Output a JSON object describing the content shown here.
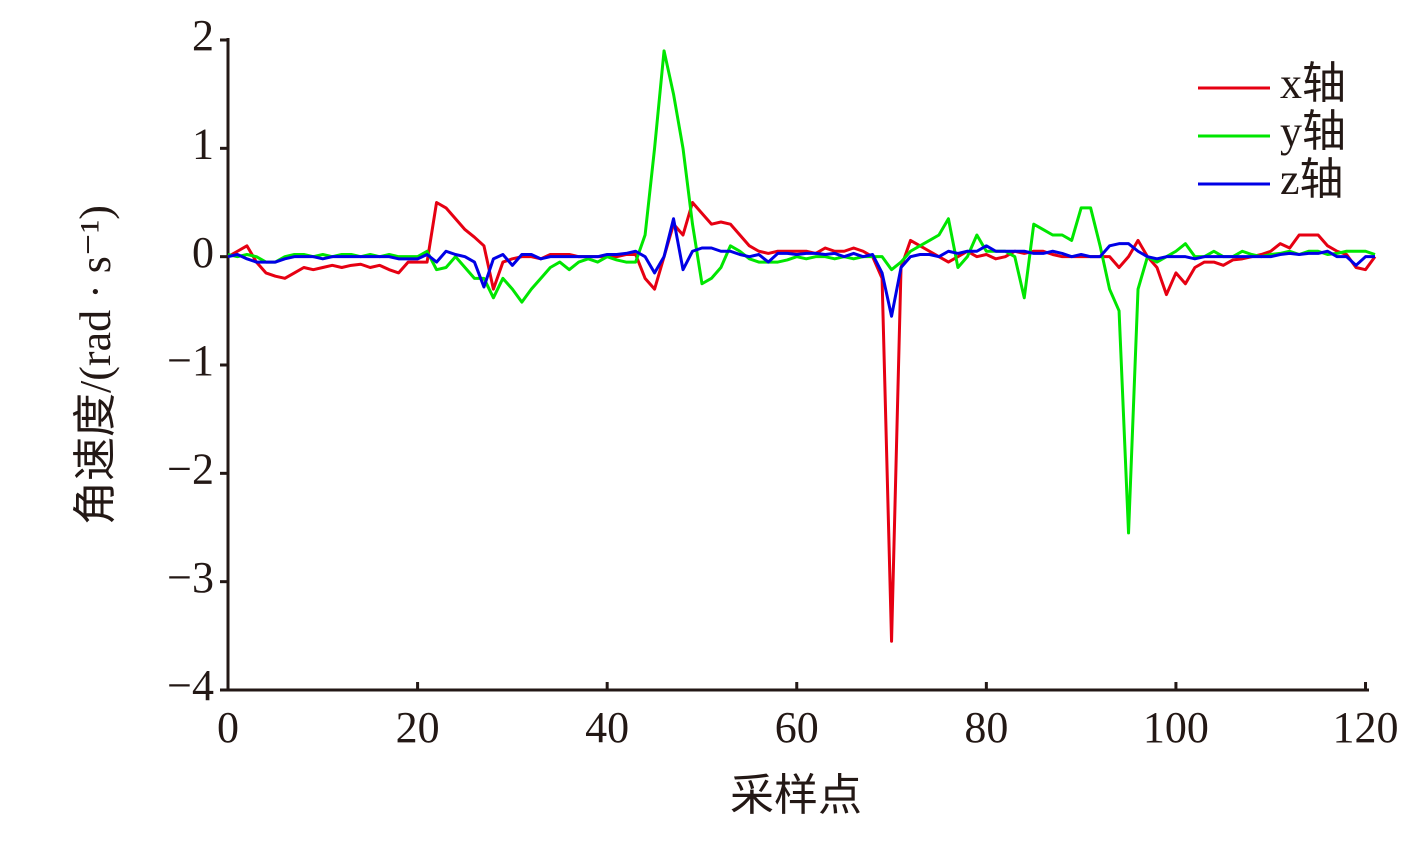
{
  "chart_data": {
    "type": "line",
    "xlabel": "采样点",
    "ylabel": "角速度/(rad · s⁻¹)",
    "x": [
      0,
      1,
      2,
      3,
      4,
      5,
      6,
      7,
      8,
      9,
      10,
      11,
      12,
      13,
      14,
      15,
      16,
      17,
      18,
      19,
      20,
      21,
      22,
      23,
      24,
      25,
      26,
      27,
      28,
      29,
      30,
      31,
      32,
      33,
      34,
      35,
      36,
      37,
      38,
      39,
      40,
      41,
      42,
      43,
      44,
      45,
      46,
      47,
      48,
      49,
      50,
      51,
      52,
      53,
      54,
      55,
      56,
      57,
      58,
      59,
      60,
      61,
      62,
      63,
      64,
      65,
      66,
      67,
      68,
      69,
      70,
      71,
      72,
      73,
      74,
      75,
      76,
      77,
      78,
      79,
      80,
      81,
      82,
      83,
      84,
      85,
      86,
      87,
      88,
      89,
      90,
      91,
      92,
      93,
      94,
      95,
      96,
      97,
      98,
      99,
      100,
      101,
      102,
      103,
      104,
      105,
      106,
      107,
      108,
      109,
      110,
      111,
      112,
      113,
      114,
      115,
      116,
      117,
      118,
      119,
      120,
      121
    ],
    "series": [
      {
        "name": "x轴",
        "color": "#e60012",
        "values": [
          0,
          0.05,
          0.1,
          -0.05,
          -0.15,
          -0.18,
          -0.2,
          -0.15,
          -0.1,
          -0.12,
          -0.1,
          -0.08,
          -0.1,
          -0.08,
          -0.07,
          -0.1,
          -0.08,
          -0.12,
          -0.15,
          -0.05,
          -0.05,
          -0.05,
          0.5,
          0.45,
          0.35,
          0.25,
          0.18,
          0.1,
          -0.3,
          -0.05,
          -0.02,
          0,
          0,
          -0.02,
          0.02,
          0.02,
          0.02,
          0,
          0,
          0,
          0,
          0,
          0.02,
          0.02,
          -0.2,
          -0.3,
          0,
          0.3,
          0.2,
          0.5,
          0.4,
          0.3,
          0.32,
          0.3,
          0.2,
          0.1,
          0.05,
          0.03,
          0.05,
          0.05,
          0.05,
          0.05,
          0.03,
          0.08,
          0.05,
          0.05,
          0.08,
          0.05,
          0,
          -0.2,
          -3.55,
          -0.1,
          0.15,
          0.1,
          0.05,
          0,
          -0.05,
          0,
          0.05,
          0,
          0.02,
          -0.02,
          0,
          0.05,
          0.03,
          0.05,
          0.05,
          0.02,
          0,
          0,
          0,
          0,
          0,
          0,
          -0.1,
          0,
          0.15,
          0,
          -0.1,
          -0.35,
          -0.15,
          -0.25,
          -0.1,
          -0.05,
          -0.05,
          -0.08,
          -0.03,
          -0.02,
          0,
          0.02,
          0.05,
          0.12,
          0.08,
          0.2,
          0.2,
          0.2,
          0.1,
          0.05,
          0.02,
          -0.1,
          -0.12,
          0
        ]
      },
      {
        "name": "y轴",
        "color": "#00e600",
        "values": [
          0.02,
          0,
          0.02,
          0,
          -0.05,
          -0.05,
          0,
          0.02,
          0.02,
          0,
          0.02,
          0,
          0.02,
          0.02,
          0,
          0.02,
          0,
          0.02,
          0,
          0,
          0,
          0.05,
          -0.12,
          -0.1,
          0,
          -0.1,
          -0.2,
          -0.2,
          -0.38,
          -0.2,
          -0.3,
          -0.42,
          -0.3,
          -0.2,
          -0.1,
          -0.05,
          -0.12,
          -0.05,
          -0.02,
          -0.05,
          0,
          -0.03,
          -0.05,
          -0.05,
          0.2,
          1.0,
          1.9,
          1.5,
          1.0,
          0.3,
          -0.25,
          -0.2,
          -0.1,
          0.1,
          0.05,
          -0.02,
          -0.05,
          -0.05,
          -0.05,
          -0.03,
          0,
          -0.02,
          0,
          0,
          -0.02,
          0,
          -0.02,
          0,
          0,
          0,
          -0.12,
          -0.05,
          0.05,
          0.1,
          0.15,
          0.2,
          0.35,
          -0.1,
          0,
          0.2,
          0.05,
          0.05,
          0.05,
          0,
          -0.38,
          0.3,
          0.25,
          0.2,
          0.2,
          0.15,
          0.45,
          0.45,
          0.1,
          -0.3,
          -0.5,
          -2.55,
          -0.3,
          0,
          -0.05,
          0,
          0.05,
          0.12,
          0,
          0,
          0.05,
          0,
          0,
          0.05,
          0.02,
          0,
          0.02,
          0.03,
          0.05,
          0.02,
          0.05,
          0.05,
          0.02,
          0.03,
          0.05,
          0.05,
          0.05,
          0.02
        ]
      },
      {
        "name": "z轴",
        "color": "#0000e6",
        "values": [
          0,
          0.02,
          -0.02,
          -0.05,
          -0.05,
          -0.05,
          -0.02,
          0,
          0,
          0,
          -0.02,
          0,
          0,
          0,
          0,
          0,
          0,
          0,
          -0.02,
          -0.02,
          -0.02,
          0.02,
          -0.05,
          0.05,
          0.02,
          0,
          -0.05,
          -0.28,
          -0.02,
          0.02,
          -0.08,
          0.02,
          0.02,
          -0.02,
          0,
          0,
          0,
          0,
          0,
          0,
          0.02,
          0.02,
          0.03,
          0.05,
          0,
          -0.15,
          0,
          0.35,
          -0.12,
          0.05,
          0.08,
          0.08,
          0.05,
          0.05,
          0.02,
          0,
          0.02,
          -0.05,
          0.03,
          0.03,
          0.02,
          0.03,
          0.03,
          0.02,
          0.03,
          0,
          0.03,
          0,
          0.02,
          -0.15,
          -0.55,
          -0.1,
          0,
          0.02,
          0.02,
          0,
          0.05,
          0.03,
          0.05,
          0.05,
          0.1,
          0.05,
          0.05,
          0.05,
          0.05,
          0.03,
          0.03,
          0.05,
          0.03,
          0,
          0.02,
          0,
          0,
          0.1,
          0.12,
          0.12,
          0.05,
          0,
          -0.02,
          0,
          0,
          0,
          -0.02,
          0,
          0,
          0,
          0,
          0,
          0,
          0,
          0,
          0.02,
          0.03,
          0.02,
          0.03,
          0.03,
          0.05,
          0,
          0,
          -0.08,
          0,
          0
        ]
      }
    ],
    "xlim": [
      0,
      121
    ],
    "xticks": [
      0,
      20,
      40,
      60,
      80,
      100,
      120
    ],
    "ylim": [
      -4,
      2
    ],
    "yticks": [
      {
        "value": -4,
        "label": "−4"
      },
      {
        "value": -3,
        "label": "−3"
      },
      {
        "value": -2,
        "label": "−2"
      },
      {
        "value": -1,
        "label": "−1"
      },
      0,
      1,
      2
    ],
    "legend": "upper-right"
  }
}
